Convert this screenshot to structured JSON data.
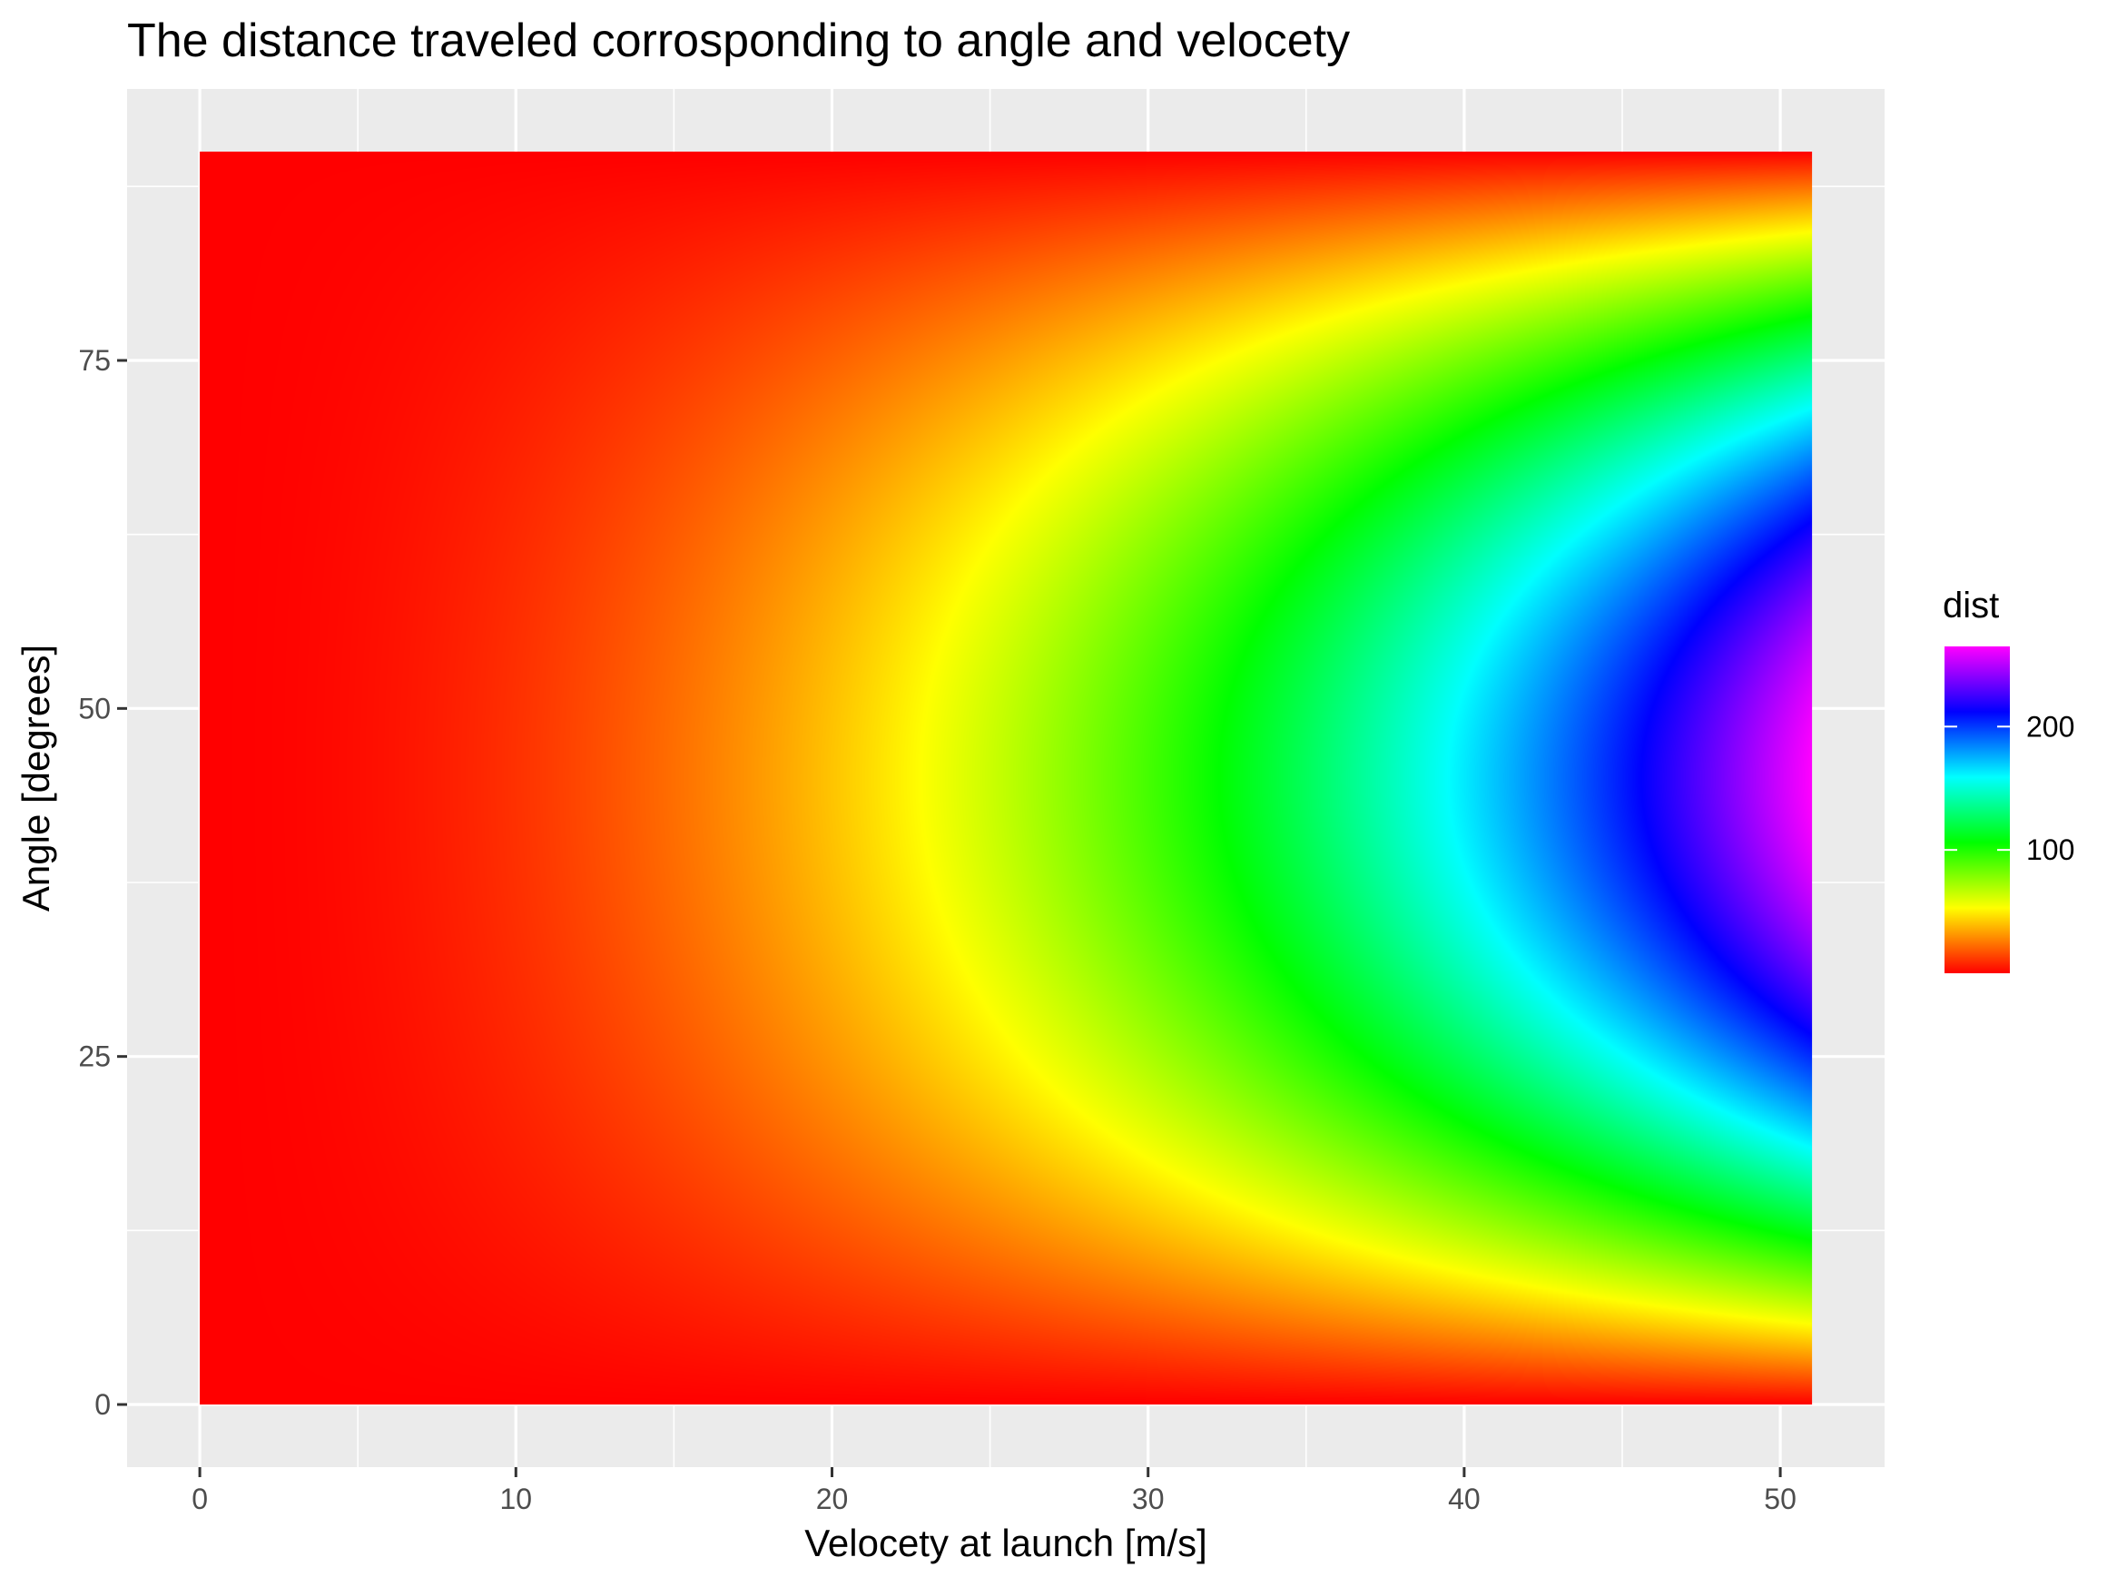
{
  "chart_data": {
    "type": "heatmap",
    "title": "The distance traveled corrosponding to angle and velocety",
    "xlabel": "Velocety at launch [m/s]",
    "ylabel": "Angle [degrees]",
    "xlim": [
      -2.3,
      53.3
    ],
    "ylim": [
      -4.5,
      94.5
    ],
    "x_ticks": [
      0,
      10,
      20,
      30,
      40,
      50
    ],
    "y_ticks": [
      0,
      25,
      50,
      75
    ],
    "x_range": [
      0,
      51
    ],
    "y_range": [
      0,
      90
    ],
    "grid": true,
    "value_formula": "dist = v^2 * sin(2 * angle) / 9.81",
    "legend": {
      "title": "dist",
      "placement": "right",
      "ticks": [
        100,
        200
      ],
      "range": [
        0,
        265
      ],
      "colors": [
        "#ff0000",
        "#ffff00",
        "#00ff00",
        "#00ffff",
        "#0000ff",
        "#ff00ff"
      ]
    },
    "panel_background": "#ebebeb",
    "gridline_color": "#ffffff"
  }
}
